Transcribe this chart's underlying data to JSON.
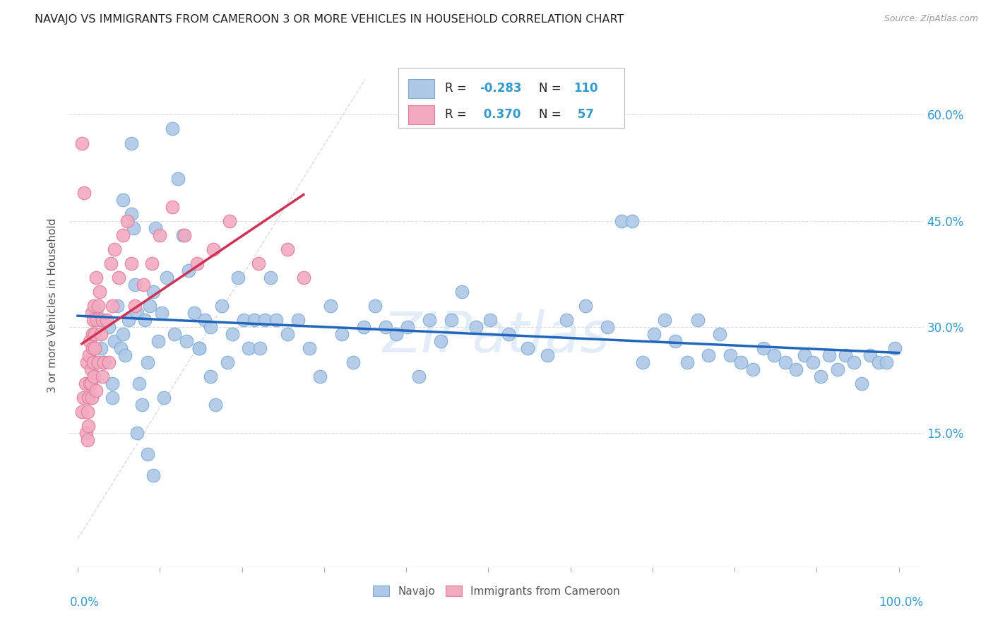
{
  "title": "NAVAJO VS IMMIGRANTS FROM CAMEROON 3 OR MORE VEHICLES IN HOUSEHOLD CORRELATION CHART",
  "source": "Source: ZipAtlas.com",
  "ylabel": "3 or more Vehicles in Household",
  "ytick_labels": [
    "15.0%",
    "30.0%",
    "45.0%",
    "60.0%"
  ],
  "ytick_values": [
    0.15,
    0.3,
    0.45,
    0.6
  ],
  "xlim": [
    -0.01,
    1.03
  ],
  "ylim": [
    -0.04,
    0.7
  ],
  "legend_label1": "Navajo",
  "legend_label2": "Immigrants from Cameroon",
  "r1": "-0.283",
  "n1": "110",
  "r2": "0.370",
  "n2": "57",
  "navajo_color": "#aec8e8",
  "cameroon_color": "#f2aabf",
  "navajo_edge": "#7aaad0",
  "cameroon_edge": "#e07898",
  "trend1_color": "#2266bb",
  "trend2_color": "#cc3355",
  "navajo_x": [
    0.022,
    0.028,
    0.032,
    0.038,
    0.042,
    0.042,
    0.045,
    0.048,
    0.052,
    0.055,
    0.058,
    0.062,
    0.065,
    0.068,
    0.07,
    0.072,
    0.075,
    0.078,
    0.082,
    0.085,
    0.088,
    0.092,
    0.095,
    0.098,
    0.102,
    0.108,
    0.115,
    0.122,
    0.128,
    0.135,
    0.142,
    0.148,
    0.155,
    0.162,
    0.168,
    0.175,
    0.182,
    0.188,
    0.195,
    0.202,
    0.208,
    0.215,
    0.222,
    0.228,
    0.235,
    0.242,
    0.255,
    0.268,
    0.282,
    0.295,
    0.308,
    0.322,
    0.335,
    0.348,
    0.362,
    0.375,
    0.388,
    0.402,
    0.415,
    0.428,
    0.442,
    0.455,
    0.468,
    0.485,
    0.502,
    0.525,
    0.548,
    0.572,
    0.595,
    0.618,
    0.645,
    0.662,
    0.675,
    0.688,
    0.702,
    0.715,
    0.728,
    0.742,
    0.755,
    0.768,
    0.782,
    0.795,
    0.808,
    0.822,
    0.835,
    0.848,
    0.862,
    0.875,
    0.885,
    0.895,
    0.905,
    0.915,
    0.925,
    0.935,
    0.945,
    0.955,
    0.965,
    0.975,
    0.985,
    0.995,
    0.055,
    0.065,
    0.072,
    0.085,
    0.092,
    0.105,
    0.118,
    0.132,
    0.148,
    0.162
  ],
  "navajo_y": [
    0.32,
    0.27,
    0.25,
    0.3,
    0.22,
    0.2,
    0.28,
    0.33,
    0.27,
    0.29,
    0.26,
    0.31,
    0.46,
    0.44,
    0.36,
    0.32,
    0.22,
    0.19,
    0.31,
    0.25,
    0.33,
    0.35,
    0.44,
    0.28,
    0.32,
    0.37,
    0.58,
    0.51,
    0.43,
    0.38,
    0.32,
    0.27,
    0.31,
    0.23,
    0.19,
    0.33,
    0.25,
    0.29,
    0.37,
    0.31,
    0.27,
    0.31,
    0.27,
    0.31,
    0.37,
    0.31,
    0.29,
    0.31,
    0.27,
    0.23,
    0.33,
    0.29,
    0.25,
    0.3,
    0.33,
    0.3,
    0.29,
    0.3,
    0.23,
    0.31,
    0.28,
    0.31,
    0.35,
    0.3,
    0.31,
    0.29,
    0.27,
    0.26,
    0.31,
    0.33,
    0.3,
    0.45,
    0.45,
    0.25,
    0.29,
    0.31,
    0.28,
    0.25,
    0.31,
    0.26,
    0.29,
    0.26,
    0.25,
    0.24,
    0.27,
    0.26,
    0.25,
    0.24,
    0.26,
    0.25,
    0.23,
    0.26,
    0.24,
    0.26,
    0.25,
    0.22,
    0.26,
    0.25,
    0.25,
    0.27,
    0.48,
    0.56,
    0.15,
    0.12,
    0.09,
    0.2,
    0.29,
    0.28,
    0.27,
    0.3
  ],
  "cameroon_x": [
    0.005,
    0.007,
    0.009,
    0.01,
    0.011,
    0.012,
    0.013,
    0.013,
    0.014,
    0.015,
    0.015,
    0.016,
    0.016,
    0.017,
    0.017,
    0.018,
    0.018,
    0.019,
    0.019,
    0.02,
    0.02,
    0.021,
    0.021,
    0.022,
    0.022,
    0.023,
    0.025,
    0.025,
    0.027,
    0.028,
    0.03,
    0.03,
    0.032,
    0.035,
    0.038,
    0.04,
    0.042,
    0.045,
    0.05,
    0.055,
    0.06,
    0.065,
    0.07,
    0.08,
    0.09,
    0.1,
    0.115,
    0.13,
    0.145,
    0.165,
    0.185,
    0.22,
    0.255,
    0.275,
    0.005,
    0.008,
    0.012
  ],
  "cameroon_y": [
    0.18,
    0.2,
    0.22,
    0.15,
    0.25,
    0.18,
    0.2,
    0.16,
    0.26,
    0.22,
    0.28,
    0.22,
    0.24,
    0.2,
    0.32,
    0.27,
    0.29,
    0.25,
    0.31,
    0.23,
    0.33,
    0.27,
    0.29,
    0.21,
    0.37,
    0.31,
    0.25,
    0.33,
    0.35,
    0.29,
    0.23,
    0.31,
    0.25,
    0.31,
    0.25,
    0.39,
    0.33,
    0.41,
    0.37,
    0.43,
    0.45,
    0.39,
    0.33,
    0.36,
    0.39,
    0.43,
    0.47,
    0.43,
    0.39,
    0.41,
    0.45,
    0.39,
    0.41,
    0.37,
    0.56,
    0.49,
    0.14
  ]
}
